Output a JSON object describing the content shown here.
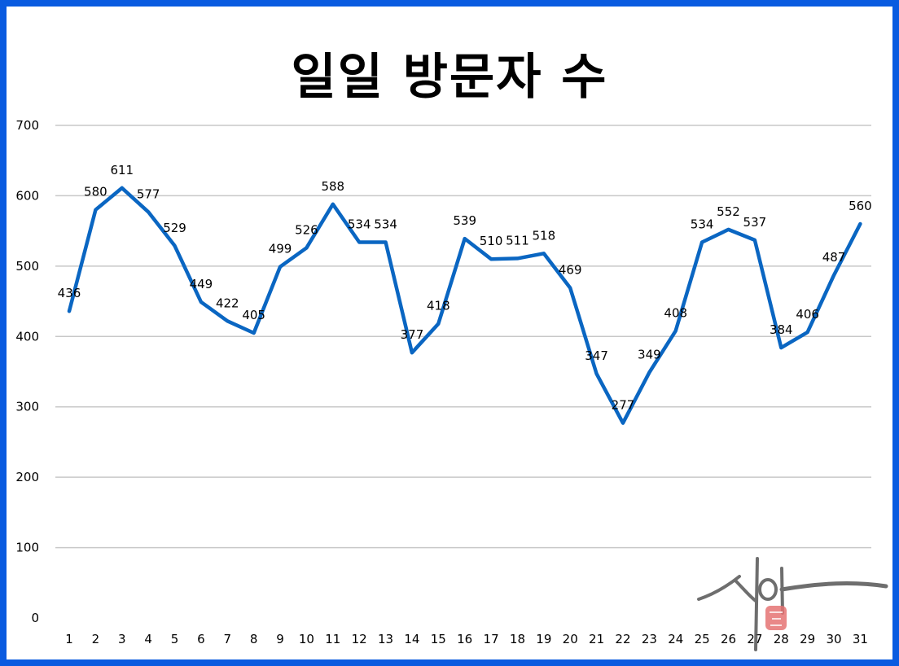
{
  "chart_data": {
    "type": "line",
    "title": "일일 방문자 수",
    "xlabel": "",
    "ylabel": "",
    "x": [
      "1",
      "2",
      "3",
      "4",
      "5",
      "6",
      "7",
      "8",
      "9",
      "10",
      "11",
      "12",
      "13",
      "14",
      "15",
      "16",
      "17",
      "18",
      "19",
      "20",
      "21",
      "22",
      "23",
      "24",
      "25",
      "26",
      "27",
      "28",
      "29",
      "30",
      "31"
    ],
    "series": [
      {
        "values": [
          436,
          580,
          611,
          577,
          529,
          449,
          422,
          405,
          499,
          526,
          588,
          534,
          534,
          377,
          418,
          539,
          510,
          511,
          518,
          469,
          347,
          277,
          349,
          408,
          534,
          552,
          537,
          384,
          406,
          487,
          560
        ],
        "color": "#0a66c2"
      }
    ],
    "ylim": [
      0,
      700
    ],
    "yticks": [
      0,
      100,
      200,
      300,
      400,
      500,
      600,
      700
    ],
    "grid": true,
    "legend": "none",
    "data_labels": true
  },
  "watermark": {
    "text": "신아",
    "seal_color": "#e05a5a"
  }
}
